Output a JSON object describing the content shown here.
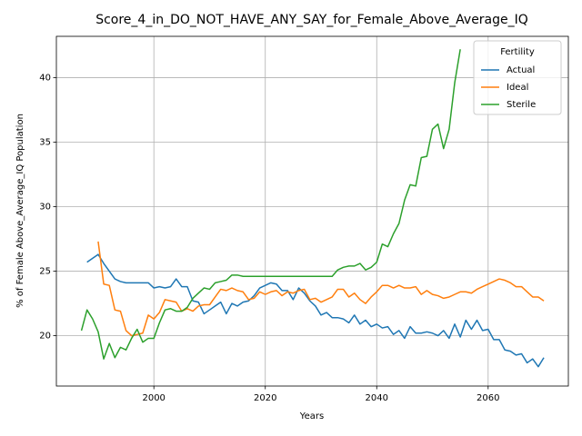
{
  "chart_data": {
    "type": "line",
    "title": "Score_4_in_DO_NOT_HAVE_ANY_SAY_for_Female_Above_Average_IQ",
    "xlabel": "Years",
    "ylabel": "% of Female Above_Average_IQ Population",
    "legend_title": "Fertility",
    "legend": "upper right",
    "grid": true,
    "xlim": [
      1982.5,
      2074.4
    ],
    "ylim": [
      16.1,
      43.2
    ],
    "xticks": [
      2000,
      2020,
      2040,
      2060
    ],
    "yticks": [
      20,
      25,
      30,
      35,
      40
    ],
    "x": [
      1987,
      1988,
      1989,
      1990,
      1991,
      1992,
      1993,
      1994,
      1995,
      1996,
      1997,
      1998,
      1999,
      2000,
      2001,
      2002,
      2003,
      2004,
      2005,
      2006,
      2007,
      2008,
      2009,
      2010,
      2011,
      2012,
      2013,
      2014,
      2015,
      2016,
      2017,
      2018,
      2019,
      2020,
      2021,
      2022,
      2023,
      2024,
      2025,
      2026,
      2027,
      2028,
      2029,
      2030,
      2031,
      2032,
      2033,
      2034,
      2035,
      2036,
      2037,
      2038,
      2039,
      2040,
      2041,
      2042,
      2043,
      2044,
      2045,
      2046,
      2047,
      2048,
      2049,
      2050,
      2051,
      2052,
      2053,
      2054,
      2055,
      2056,
      2057,
      2058,
      2059,
      2060,
      2061,
      2062,
      2063,
      2064,
      2065,
      2066,
      2067,
      2068,
      2069,
      2070
    ],
    "series": [
      {
        "name": "Actual",
        "color": "#1f77b4",
        "values": [
          null,
          25.7,
          26.0,
          26.3,
          25.6,
          25.0,
          24.4,
          24.2,
          24.1,
          24.1,
          24.1,
          24.1,
          24.1,
          23.7,
          23.8,
          23.7,
          23.8,
          24.4,
          23.8,
          23.8,
          22.7,
          22.6,
          21.7,
          22.0,
          22.3,
          22.6,
          21.7,
          22.5,
          22.3,
          22.6,
          22.7,
          23.1,
          23.7,
          23.9,
          24.1,
          24.0,
          23.5,
          23.5,
          22.8,
          23.7,
          23.3,
          22.7,
          22.3,
          21.6,
          21.8,
          21.4,
          21.4,
          21.3,
          21.0,
          21.6,
          20.9,
          21.2,
          20.7,
          20.9,
          20.6,
          20.7,
          20.1,
          20.4,
          19.8,
          20.7,
          20.2,
          20.2,
          20.3,
          20.2,
          20.0,
          20.4,
          19.8,
          20.9,
          19.9,
          21.2,
          20.5,
          21.2,
          20.4,
          20.5,
          19.7,
          19.7,
          18.9,
          18.8,
          18.5,
          18.6,
          17.9,
          18.2,
          17.6,
          18.3
        ]
      },
      {
        "name": "Ideal",
        "color": "#ff7f0e",
        "values": [
          null,
          null,
          null,
          27.3,
          24.0,
          23.9,
          22.0,
          21.9,
          20.4,
          20.0,
          20.1,
          20.2,
          21.6,
          21.3,
          21.8,
          22.8,
          22.7,
          22.6,
          21.9,
          22.1,
          21.9,
          22.3,
          22.4,
          22.4,
          23.0,
          23.6,
          23.5,
          23.7,
          23.5,
          23.4,
          22.8,
          22.9,
          23.4,
          23.2,
          23.4,
          23.5,
          23.1,
          23.4,
          23.3,
          23.5,
          23.6,
          22.8,
          22.9,
          22.6,
          22.8,
          23.0,
          23.6,
          23.6,
          23.0,
          23.3,
          22.8,
          22.5,
          23.0,
          23.4,
          23.9,
          23.9,
          23.7,
          23.9,
          23.7,
          23.7,
          23.8,
          23.2,
          23.5,
          23.2,
          23.1,
          22.9,
          23.0,
          23.2,
          23.4,
          23.4,
          23.3,
          23.6,
          23.8,
          24.0,
          24.2,
          24.4,
          24.3,
          24.1,
          23.8,
          23.8,
          23.4,
          23.0,
          23.0,
          22.7
        ]
      },
      {
        "name": "Sterile",
        "color": "#2ca02c",
        "values": [
          20.4,
          22.0,
          21.3,
          20.3,
          18.2,
          19.4,
          18.3,
          19.1,
          18.9,
          19.8,
          20.5,
          19.5,
          19.8,
          19.8,
          21.0,
          22.0,
          22.1,
          21.9,
          21.9,
          22.2,
          22.9,
          23.3,
          23.7,
          23.6,
          24.1,
          24.2,
          24.3,
          24.7,
          24.7,
          24.6,
          24.6,
          24.6,
          24.6,
          24.6,
          24.6,
          24.6,
          24.6,
          24.6,
          24.6,
          24.6,
          24.6,
          24.6,
          24.6,
          24.6,
          24.6,
          24.6,
          25.1,
          25.3,
          25.4,
          25.4,
          25.6,
          25.1,
          25.3,
          25.7,
          27.1,
          26.9,
          27.9,
          28.7,
          30.5,
          31.7,
          31.6,
          33.8,
          33.9,
          36.0,
          36.4,
          34.5,
          36.0,
          39.6,
          42.2,
          null,
          null,
          null,
          null,
          null,
          null,
          null,
          null,
          null,
          null,
          null,
          null,
          null,
          null,
          null
        ]
      }
    ]
  }
}
